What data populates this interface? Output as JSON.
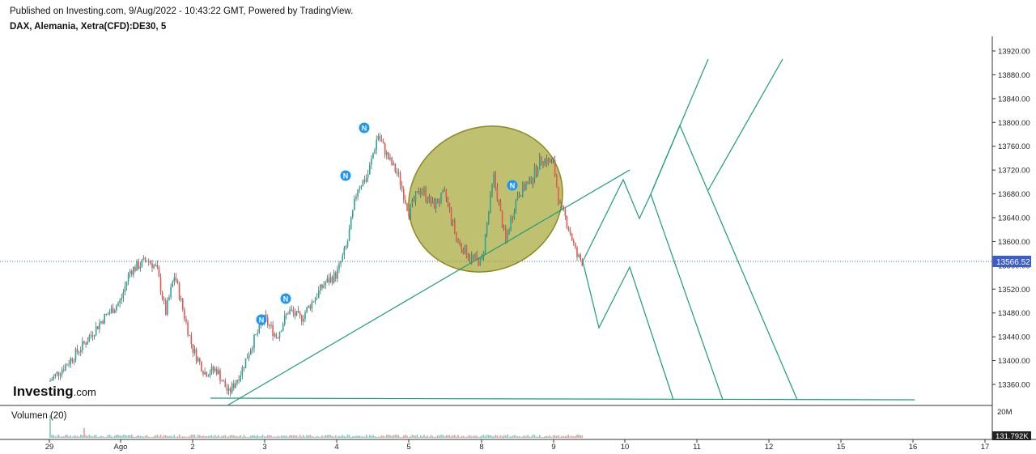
{
  "header": {
    "published": "Published on Investing.com, 9/Aug/2022 - 10:43:22 GMT, Powered by TradingView.",
    "symbol": "DAX, Alemania, Xetra(CFD):DE30, 5"
  },
  "logo": {
    "brand": "Investing",
    "suffix": ".com"
  },
  "volume": {
    "label": "Volumen (20)",
    "axis_top": "20M",
    "current": "131.792K"
  },
  "colors": {
    "up": "#26a69a",
    "down": "#ef5350",
    "wick": "#333333",
    "drawing": "#1a9e7a",
    "ellipse_fill": "#a8a83a",
    "ellipse_stroke": "#8a8a20",
    "price_badge": "#3d5fc4",
    "marker": "#2196f3"
  },
  "chart_data": {
    "type": "candlestick",
    "timeframe": "5",
    "current_price": "13566.52",
    "ylim": [
      13320,
      13930
    ],
    "y_ticks": [
      "13920.00",
      "13880.00",
      "13840.00",
      "13800.00",
      "13760.00",
      "13720.00",
      "13680.00",
      "13640.00",
      "13600.00",
      "13560.00",
      "13520.00",
      "13480.00",
      "13440.00",
      "13400.00",
      "13360.00"
    ],
    "x_ticks": [
      "29",
      "Ago",
      "2",
      "3",
      "4",
      "5",
      "8",
      "9",
      "10",
      "11",
      "12",
      "15",
      "16",
      "17"
    ],
    "price_path": [
      [
        "29",
        13365
      ],
      [
        "29",
        13395
      ],
      [
        "29",
        13430
      ],
      [
        "29",
        13470
      ],
      [
        "Ago",
        13500
      ],
      [
        "Ago",
        13550
      ],
      [
        "Ago",
        13560
      ],
      [
        "Ago",
        13570
      ],
      [
        "Ago",
        13555
      ],
      [
        "Ago",
        13480
      ],
      [
        "Ago",
        13545
      ],
      [
        "Ago",
        13480
      ],
      [
        "2",
        13420
      ],
      [
        "2",
        13380
      ],
      [
        "2",
        13385
      ],
      [
        "2",
        13345
      ],
      [
        "2",
        13380
      ],
      [
        "2",
        13430
      ],
      [
        "3",
        13470
      ],
      [
        "3",
        13440
      ],
      [
        "3",
        13485
      ],
      [
        "3",
        13470
      ],
      [
        "3",
        13500
      ],
      [
        "3",
        13530
      ],
      [
        "4",
        13545
      ],
      [
        "4",
        13595
      ],
      [
        "4",
        13690
      ],
      [
        "4",
        13710
      ],
      [
        "4",
        13780
      ],
      [
        "4",
        13740
      ],
      [
        "4",
        13710
      ],
      [
        "5",
        13650
      ],
      [
        "5",
        13690
      ],
      [
        "5",
        13660
      ],
      [
        "5",
        13680
      ],
      [
        "5",
        13600
      ],
      [
        "5",
        13575
      ],
      [
        "8",
        13565
      ],
      [
        "8",
        13710
      ],
      [
        "8",
        13600
      ],
      [
        "8",
        13680
      ],
      [
        "8",
        13700
      ],
      [
        "8",
        13740
      ],
      [
        "9",
        13730
      ],
      [
        "9",
        13660
      ],
      [
        "9",
        13640
      ],
      [
        "9",
        13610
      ],
      [
        "9",
        13575
      ]
    ],
    "markers": [
      {
        "label": "N",
        "near_price": 13470
      },
      {
        "label": "N",
        "near_price": 13500
      },
      {
        "label": "N",
        "near_price": 13710
      },
      {
        "label": "N",
        "near_price": 13782
      },
      {
        "label": "N",
        "near_price": 13690
      }
    ],
    "annotations": {
      "support_line_price": 13355,
      "trendline": "rising from 2 Aug to around 13720 on 10 Aug",
      "projected_zigzags": "drawn from the 9 Aug close down to 13355",
      "highlighted_zone": "ellipse over 5–9 Aug range 13565–13795"
    }
  }
}
